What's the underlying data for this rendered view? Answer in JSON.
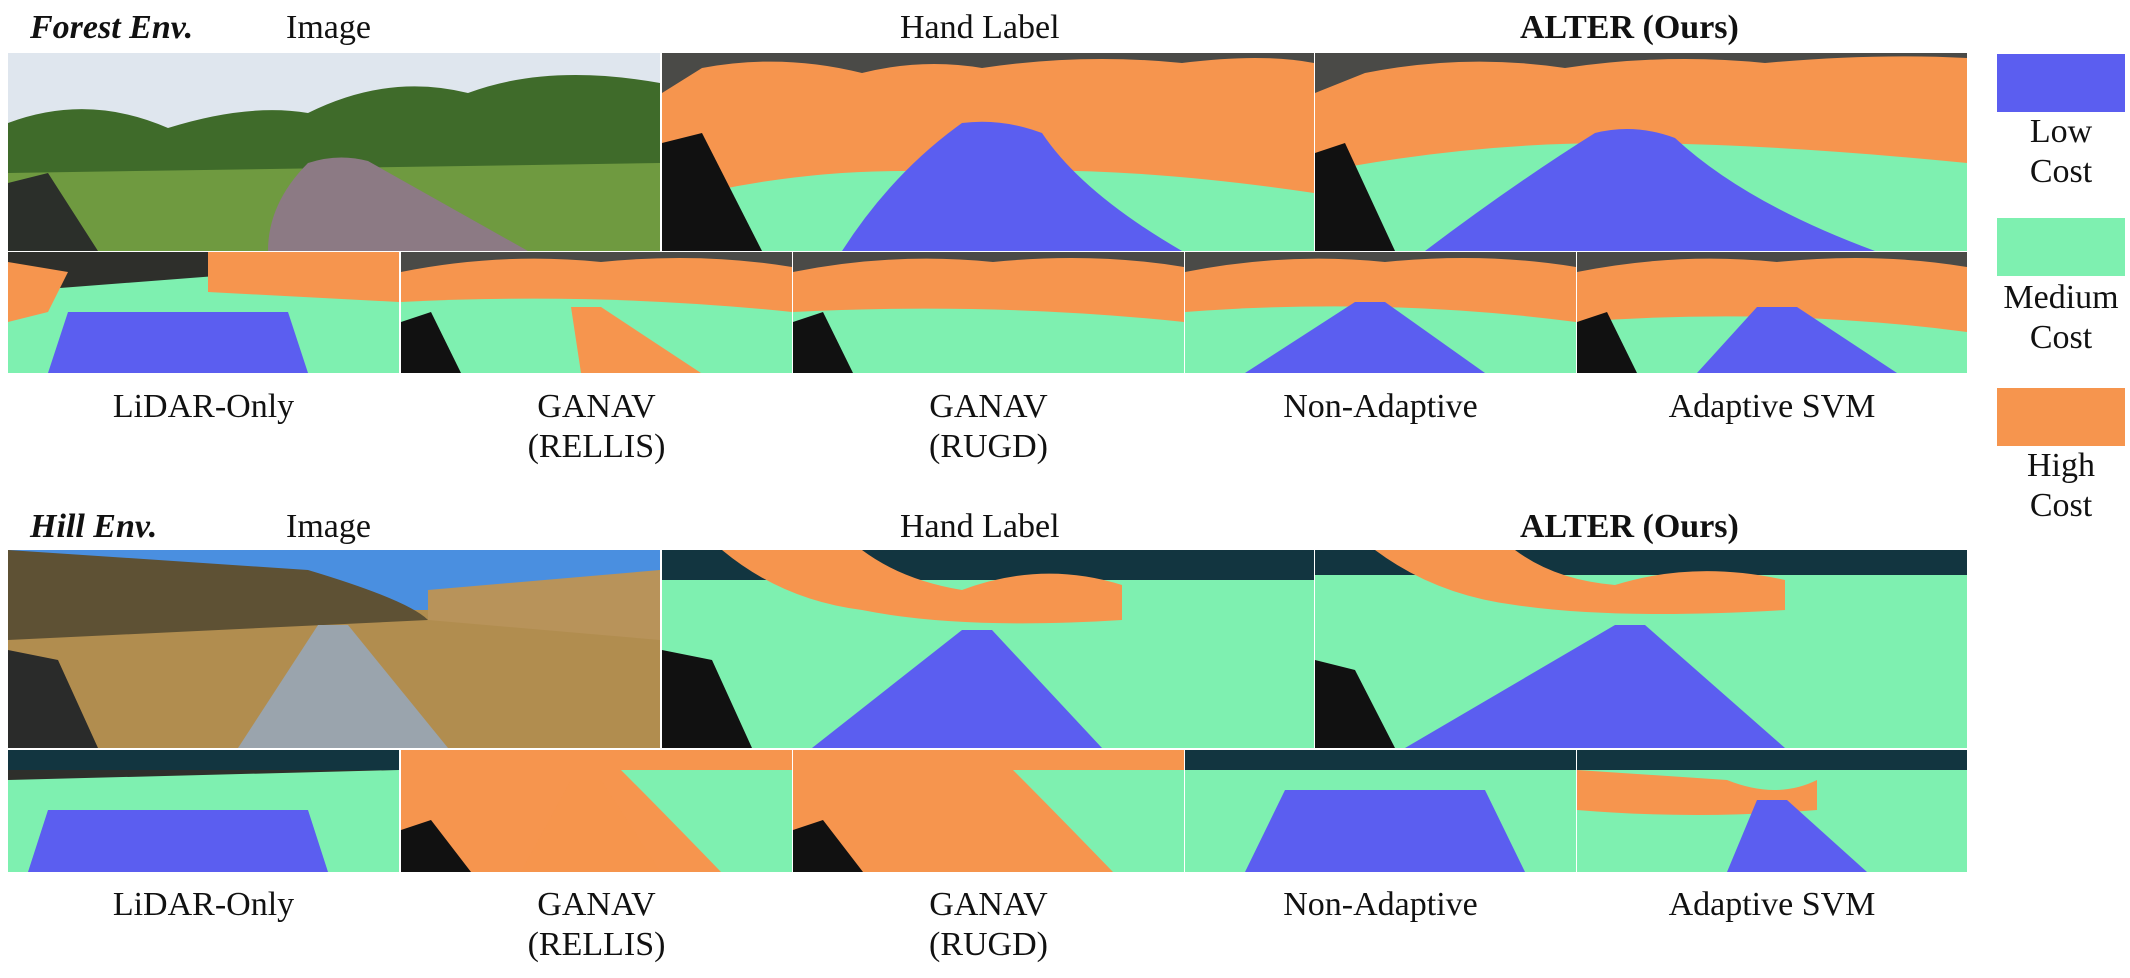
{
  "colors": {
    "low_cost": "#5b5ef0",
    "medium_cost": "#7ef0b0",
    "high_cost": "#f6954e"
  },
  "legend": {
    "low_label": "Low\nCost",
    "medium_label": "Medium\nCost",
    "high_label": "High\nCost"
  },
  "forest": {
    "env_label": "Forest Env.",
    "image_label": "Image",
    "hand_label": "Hand Label",
    "alter_label": "ALTER (Ours)",
    "methods": [
      "LiDAR-Only",
      "GANAV\n(RELLIS)",
      "GANAV\n(RUGD)",
      "Non-Adaptive",
      "Adaptive SVM"
    ]
  },
  "hill": {
    "env_label": "Hill Env.",
    "image_label": "Image",
    "hand_label": "Hand Label",
    "alter_label": "ALTER (Ours)",
    "methods": [
      "LiDAR-Only",
      "GANAV\n(RELLIS)",
      "GANAV\n(RUGD)",
      "Non-Adaptive",
      "Adaptive SVM"
    ]
  }
}
